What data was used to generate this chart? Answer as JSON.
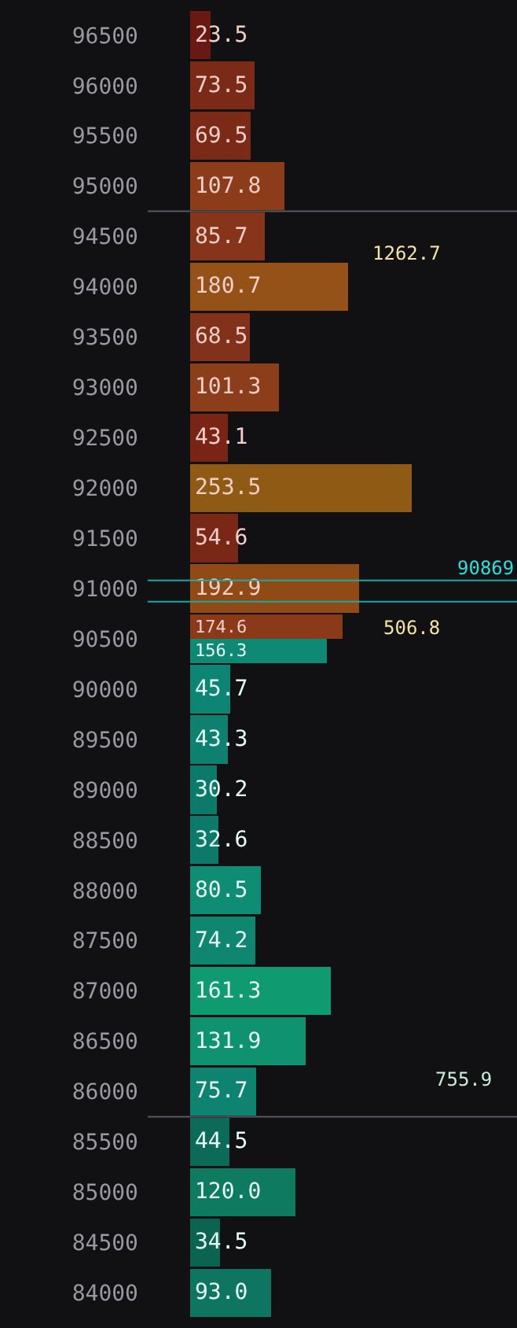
{
  "chart_data": {
    "type": "bar",
    "orientation": "horizontal",
    "x": [
      96500,
      96000,
      95500,
      95000,
      94500,
      94000,
      93500,
      93000,
      92500,
      92000,
      91500,
      91000,
      90500,
      90000,
      89500,
      89000,
      88500,
      88000,
      87500,
      87000,
      86500,
      86000,
      85500,
      85000,
      84500,
      84000
    ],
    "series": [
      {
        "value_labels": [
          "23.5",
          "73.5",
          "69.5",
          "107.8",
          "85.7",
          "180.7",
          "68.5",
          "101.3",
          "43.1",
          "253.5",
          "54.6",
          "192.9",
          "174.6",
          null,
          null,
          null,
          null,
          null,
          null,
          null,
          null,
          null,
          null,
          null,
          null,
          null
        ],
        "values": [
          23.5,
          73.5,
          69.5,
          107.8,
          85.7,
          180.7,
          68.5,
          101.3,
          43.1,
          253.5,
          54.6,
          192.9,
          174.6,
          null,
          null,
          null,
          null,
          null,
          null,
          null,
          null,
          null,
          null,
          null,
          null,
          null
        ],
        "colors": [
          "#6a1812",
          "#7a2a16",
          "#7a2a16",
          "#8c3c18",
          "#86341a",
          "#955218",
          "#82321a",
          "#8c3e1a",
          "#7a2416",
          "#8e5a14",
          "#7a2816",
          "#8f4a16",
          "#8a3a18",
          "#000000",
          "#000000",
          "#000000",
          "#000000",
          "#000000",
          "#000000",
          "#000000",
          "#000000",
          "#000000",
          "#000000",
          "#000000",
          "#000000",
          "#000000"
        ]
      },
      {
        "value_labels": [
          null,
          null,
          null,
          null,
          null,
          null,
          null,
          null,
          null,
          null,
          null,
          null,
          "156.3",
          "45.7",
          "43.3",
          "30.2",
          "32.6",
          "80.5",
          "74.2",
          "161.3",
          "131.9",
          "75.7",
          "44.5",
          "120.0",
          "34.5",
          "93.0"
        ],
        "values": [
          null,
          null,
          null,
          null,
          null,
          null,
          null,
          null,
          null,
          null,
          null,
          null,
          156.3,
          45.7,
          43.3,
          30.2,
          32.6,
          80.5,
          74.2,
          161.3,
          131.9,
          75.7,
          44.5,
          120.0,
          34.5,
          93.0
        ],
        "colors": [
          "#000000",
          "#000000",
          "#000000",
          "#000000",
          "#000000",
          "#000000",
          "#000000",
          "#000000",
          "#000000",
          "#000000",
          "#000000",
          "#000000",
          "#0e8a74",
          "#0d8574",
          "#0d8070",
          "#0c7a6a",
          "#0c7a6a",
          "#0f8c74",
          "#0e8670",
          "#109a70",
          "#0f9270",
          "#0e8470",
          "#0b6a58",
          "#0e7a60",
          "#0b6450",
          "#0e7660"
        ]
      }
    ],
    "ylim": [
      83650,
      96850
    ],
    "yticks": [
      96500,
      96000,
      95500,
      95000,
      94500,
      94000,
      93500,
      93000,
      92500,
      92000,
      91500,
      91000,
      90500,
      90000,
      89500,
      89000,
      88500,
      88000,
      87500,
      87000,
      86500,
      86000,
      85500,
      85000,
      84500,
      84000
    ],
    "ref_lines": [
      {
        "axis": "y",
        "value": 94750,
        "color": "#5a5a5e"
      },
      {
        "axis": "y",
        "value": 85750,
        "color": "#5a5a5e"
      },
      {
        "axis": "y",
        "value": 91080,
        "color": "#1aa8a4"
      },
      {
        "axis": "y",
        "value": 90869,
        "label": "90869",
        "color": "#1aa8a4"
      }
    ],
    "annotations": [
      "1262.7",
      "506.8",
      "755.9"
    ]
  }
}
